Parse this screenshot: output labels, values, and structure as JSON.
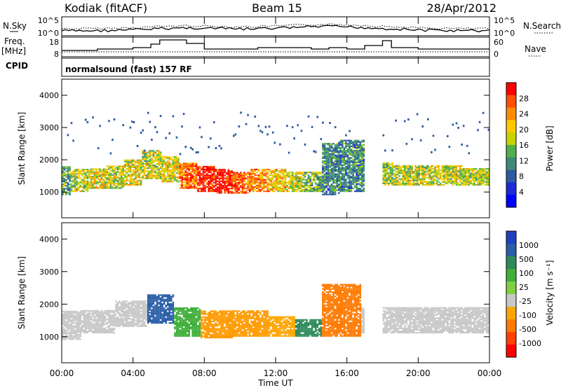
{
  "header": {
    "station": "Kodiak (fitACF)",
    "beam": "Beam 15",
    "date": "28/Apr/2012"
  },
  "left_labels": {
    "nsky": "N.Sky",
    "freq": "Freq.",
    "freq_unit": "[MHz]",
    "cpid": "CPID"
  },
  "right_labels": {
    "nsearch": "N.Search",
    "nave": "Nave"
  },
  "cpid_text": "normalsound (fast) 157 RF",
  "noise_panel": {
    "left_ticks": [
      "10^5",
      "10^0"
    ],
    "right_ticks": [
      "10^5",
      "10^0"
    ]
  },
  "freq_panel": {
    "left_ticks": [
      "18",
      "8"
    ],
    "right_ticks": [
      "60",
      "0"
    ]
  },
  "chart_data": [
    {
      "type": "heatmap",
      "panel": "power",
      "ylabel": "Slant Range [km]",
      "yticks": [
        1000,
        2000,
        3000,
        4000
      ],
      "ylim": [
        200,
        4500
      ],
      "colorbar_label": "Power [dB]",
      "colorbar_ticks": [
        "28",
        "24",
        "20",
        "16",
        "12",
        "8",
        "4"
      ],
      "colorbar_colors": [
        "#ff0000",
        "#ff5000",
        "#ff8c00",
        "#ffc800",
        "#c8d200",
        "#52b04a",
        "#3d8a78",
        "#2d5aa0",
        "#1e2ad8",
        "#0000ff"
      ],
      "colors": {
        "scatter_base": "#2a4fa8"
      },
      "bands": [
        {
          "t": 0.0,
          "r0": 900,
          "r1": 1800,
          "level": 0.4
        },
        {
          "t": 1.0,
          "r0": 1000,
          "r1": 1700,
          "level": 0.55
        },
        {
          "t": 2.0,
          "r0": 1100,
          "r1": 1700,
          "level": 0.6
        },
        {
          "t": 3.0,
          "r0": 1100,
          "r1": 1800,
          "level": 0.55
        },
        {
          "t": 4.0,
          "r0": 1200,
          "r1": 2000,
          "level": 0.6
        },
        {
          "t": 5.0,
          "r0": 1400,
          "r1": 2300,
          "level": 0.55
        },
        {
          "t": 6.0,
          "r0": 1300,
          "r1": 2100,
          "level": 0.6
        },
        {
          "t": 7.0,
          "r0": 1100,
          "r1": 1900,
          "level": 0.8
        },
        {
          "t": 8.0,
          "r0": 1000,
          "r1": 1800,
          "level": 0.95
        },
        {
          "t": 9.0,
          "r0": 950,
          "r1": 1700,
          "level": 0.95
        },
        {
          "t": 10.0,
          "r0": 950,
          "r1": 1600,
          "level": 0.85
        },
        {
          "t": 11.0,
          "r0": 1000,
          "r1": 1700,
          "level": 0.75
        },
        {
          "t": 12.0,
          "r0": 1000,
          "r1": 1700,
          "level": 0.65
        },
        {
          "t": 13.0,
          "r0": 1000,
          "r1": 1600,
          "level": 0.55
        },
        {
          "t": 14.0,
          "r0": 1000,
          "r1": 1600,
          "level": 0.45
        },
        {
          "t": 15.0,
          "r0": 900,
          "r1": 2500,
          "level": 0.35
        },
        {
          "t": 16.0,
          "r0": 1000,
          "r1": 2600,
          "level": 0.35
        },
        {
          "t": 18.0,
          "r0": 1200,
          "r1": 1900,
          "level": 0.5
        },
        {
          "t": 19.0,
          "r0": 1200,
          "r1": 1800,
          "level": 0.55
        },
        {
          "t": 20.0,
          "r0": 1200,
          "r1": 1800,
          "level": 0.55
        },
        {
          "t": 21.0,
          "r0": 1200,
          "r1": 1800,
          "level": 0.55
        },
        {
          "t": 22.0,
          "r0": 1200,
          "r1": 1800,
          "level": 0.55
        },
        {
          "t": 23.0,
          "r0": 1200,
          "r1": 1700,
          "level": 0.55
        }
      ]
    },
    {
      "type": "heatmap",
      "panel": "velocity",
      "ylabel": "Slant Range [km]",
      "yticks": [
        1000,
        2000,
        3000,
        4000
      ],
      "ylim": [
        200,
        4500
      ],
      "colorbar_label": "Velocity [m s⁻¹]",
      "colorbar_ticks": [
        "1000",
        "500",
        "100",
        "25",
        "-25",
        "-100",
        "-500",
        "-1000"
      ],
      "colorbar_colors": [
        "#2040c0",
        "#2a5ea8",
        "#2f8a5a",
        "#3fae3a",
        "#7fd040",
        "#c8c8c8",
        "#ffa500",
        "#ff7a00",
        "#ff4000",
        "#ff0000"
      ],
      "bands": [
        {
          "t": 0.0,
          "r0": 900,
          "r1": 1800,
          "c": "#c8c8c8"
        },
        {
          "t": 2.0,
          "r0": 1100,
          "r1": 1800,
          "c": "#c8c8c8"
        },
        {
          "t": 4.0,
          "r0": 1300,
          "r1": 2100,
          "c": "#c8c8c8"
        },
        {
          "t": 5.5,
          "r0": 1400,
          "r1": 2300,
          "c": "#2a5ea8"
        },
        {
          "t": 7.0,
          "r0": 1000,
          "r1": 1900,
          "c": "#3fae3a"
        },
        {
          "t": 8.5,
          "r0": 950,
          "r1": 1800,
          "c": "#ff9a00"
        },
        {
          "t": 10.5,
          "r0": 1000,
          "r1": 1800,
          "c": "#ff9a00"
        },
        {
          "t": 12.5,
          "r0": 1000,
          "r1": 1600,
          "c": "#ffa500"
        },
        {
          "t": 13.5,
          "r0": 1000,
          "r1": 1500,
          "c": "#2f8a5a"
        },
        {
          "t": 15.5,
          "r0": 1000,
          "r1": 2600,
          "c": "#ff7a00"
        },
        {
          "t": 18.0,
          "r0": 1100,
          "r1": 1900,
          "c": "#c8c8c8"
        },
        {
          "t": 21.0,
          "r0": 1100,
          "r1": 1900,
          "c": "#c8c8c8"
        }
      ]
    }
  ],
  "x_axis": {
    "label": "Time UT",
    "ticks": [
      "00:00",
      "04:00",
      "08:00",
      "12:00",
      "16:00",
      "20:00",
      "00:00"
    ]
  }
}
